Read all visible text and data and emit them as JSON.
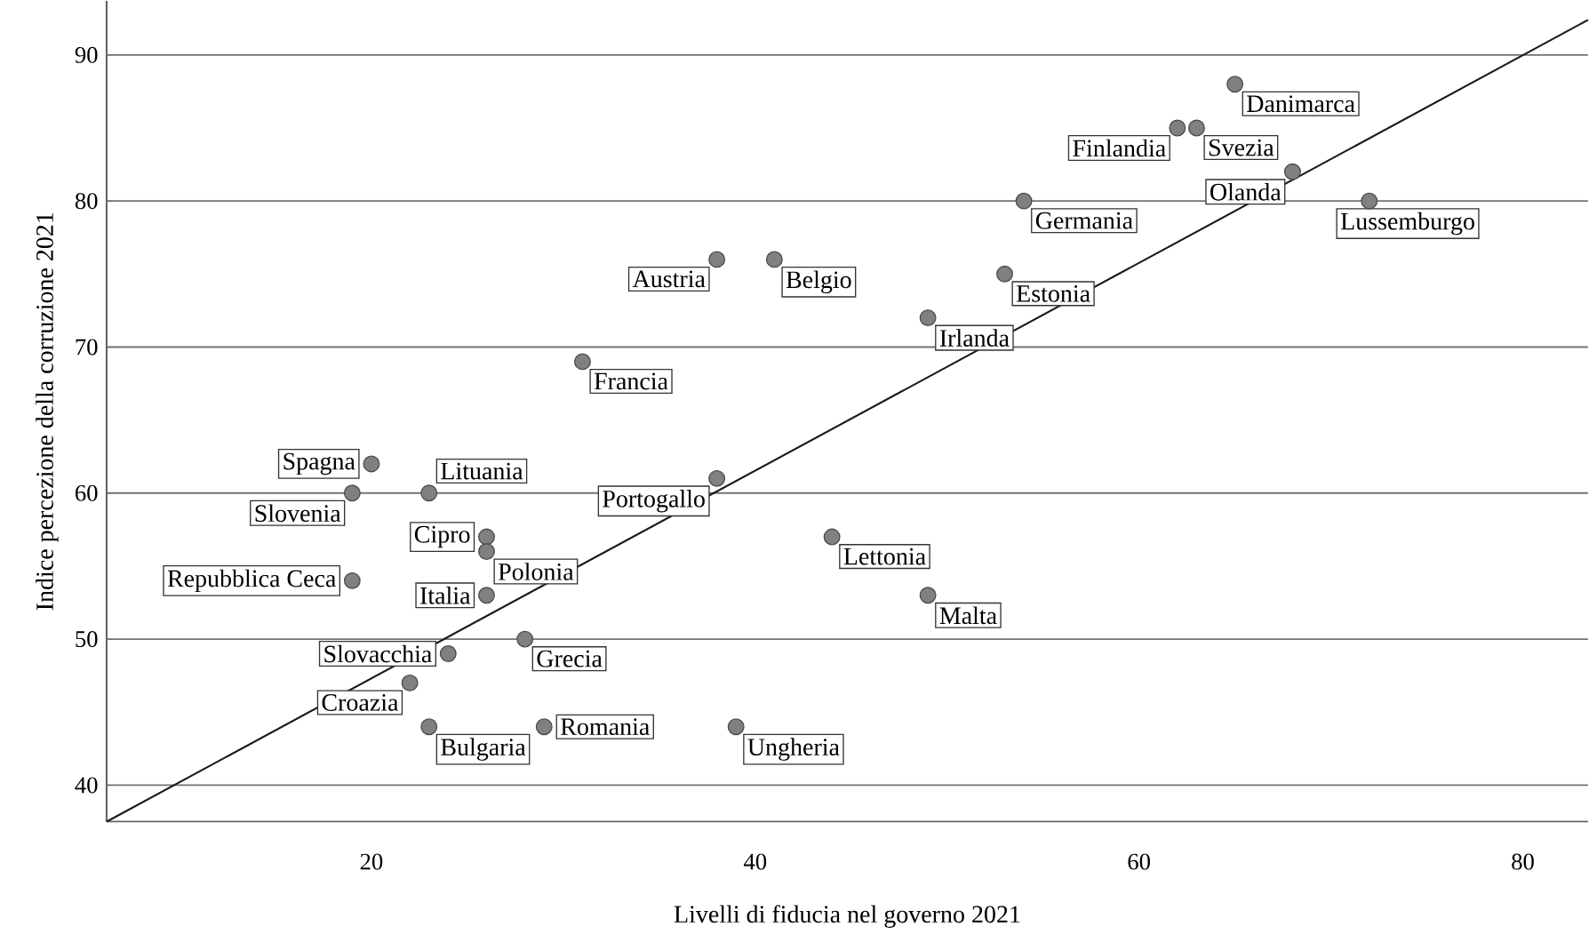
{
  "chart_data": {
    "type": "scatter",
    "xlabel": "Livelli di fiducia nel governo 2021",
    "ylabel": "Indice percezione della corruzione 2021",
    "xlim": [
      6.2,
      83.4
    ],
    "ylim": [
      37.5,
      93.7
    ],
    "xticks": [
      20,
      40,
      60,
      80
    ],
    "yticks": [
      40,
      50,
      60,
      70,
      80,
      90
    ],
    "grid": "y",
    "series": [
      {
        "type": "scatter",
        "color": "#808080",
        "marker": "circle",
        "x": [
          38,
          41,
          31,
          65,
          62,
          63,
          68,
          54,
          72,
          53,
          49,
          20,
          19,
          23,
          38,
          26,
          26,
          19,
          26,
          28,
          24,
          22,
          23,
          29,
          39,
          44,
          49
        ],
        "values": [
          76,
          76,
          69,
          88,
          85,
          85,
          82,
          80,
          80,
          75,
          72,
          62,
          60,
          60,
          61,
          57,
          56,
          54,
          53,
          50,
          49,
          47,
          44,
          44,
          44,
          57,
          53
        ]
      },
      {
        "type": "line",
        "color": "#1a1a1a",
        "line_style": "solid",
        "marker": "none",
        "x": [
          6.2,
          83.4
        ],
        "values": [
          37.5,
          92.4
        ]
      }
    ],
    "annotations": [
      {
        "text": "Austria",
        "x": 38,
        "y": 76
      },
      {
        "text": "Belgio",
        "x": 41,
        "y": 76
      },
      {
        "text": "Francia",
        "x": 31,
        "y": 69
      },
      {
        "text": "Danimarca",
        "x": 65,
        "y": 88
      },
      {
        "text": "Finlandia",
        "x": 62,
        "y": 85
      },
      {
        "text": "Svezia",
        "x": 63,
        "y": 85
      },
      {
        "text": "Olanda",
        "x": 68,
        "y": 82
      },
      {
        "text": "Germania",
        "x": 54,
        "y": 80
      },
      {
        "text": "Lussemburgo",
        "x": 72,
        "y": 80
      },
      {
        "text": "Estonia",
        "x": 53,
        "y": 75
      },
      {
        "text": "Irlanda",
        "x": 49,
        "y": 72
      },
      {
        "text": "Spagna",
        "x": 20,
        "y": 62
      },
      {
        "text": "Slovenia",
        "x": 19,
        "y": 60
      },
      {
        "text": "Lituania",
        "x": 23,
        "y": 60
      },
      {
        "text": "Portogallo",
        "x": 38,
        "y": 61
      },
      {
        "text": "Cipro",
        "x": 26,
        "y": 57
      },
      {
        "text": "Polonia",
        "x": 26,
        "y": 56
      },
      {
        "text": "Repubblica Ceca",
        "x": 19,
        "y": 54
      },
      {
        "text": "Italia",
        "x": 26,
        "y": 53
      },
      {
        "text": "Grecia",
        "x": 28,
        "y": 50
      },
      {
        "text": "Slovacchia",
        "x": 24,
        "y": 49
      },
      {
        "text": "Croazia",
        "x": 22,
        "y": 47
      },
      {
        "text": "Bulgaria",
        "x": 23,
        "y": 44
      },
      {
        "text": "Romania",
        "x": 29,
        "y": 44
      },
      {
        "text": "Ungheria",
        "x": 39,
        "y": 44
      },
      {
        "text": "Lettonia",
        "x": 44,
        "y": 57
      },
      {
        "text": "Malta",
        "x": 49,
        "y": 53
      }
    ]
  }
}
